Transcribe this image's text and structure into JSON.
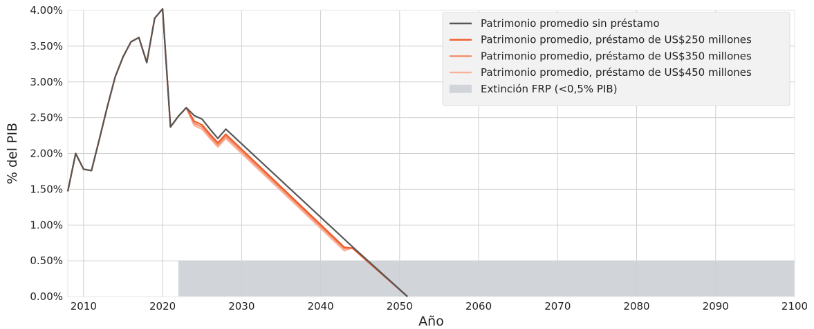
{
  "chart_data": {
    "type": "line",
    "xlabel": "Año",
    "ylabel": "% del PIB",
    "xlim": [
      2008,
      2100
    ],
    "ylim": [
      0,
      4.0
    ],
    "x_ticks": [
      2010,
      2020,
      2030,
      2040,
      2050,
      2060,
      2070,
      2080,
      2090,
      2100
    ],
    "y_ticks": [
      0,
      0.5,
      1.0,
      1.5,
      2.0,
      2.5,
      3.0,
      3.5,
      4.0
    ],
    "y_tick_labels": [
      "0.00%",
      "0.50%",
      "1.00%",
      "1.50%",
      "2.00%",
      "2.50%",
      "3.00%",
      "3.50%",
      "4.00%"
    ],
    "grid": true,
    "legend_position": "top-right",
    "shaded_region": {
      "name": "Extinción FRP (<0,5% PIB)",
      "x_start": 2022,
      "x_end": 2100,
      "y_start": 0,
      "y_end": 0.5,
      "color": "#d1d5d9"
    },
    "series": [
      {
        "name": "Patrimonio promedio sin préstamo",
        "color": "#555555",
        "points": [
          [
            2008,
            1.47
          ],
          [
            2009,
            2.0
          ],
          [
            2010,
            1.78
          ],
          [
            2011,
            1.76
          ],
          [
            2012,
            2.2
          ],
          [
            2013,
            2.65
          ],
          [
            2014,
            3.07
          ],
          [
            2015,
            3.35
          ],
          [
            2016,
            3.56
          ],
          [
            2017,
            3.62
          ],
          [
            2018,
            3.27
          ],
          [
            2019,
            3.89
          ],
          [
            2020,
            4.02
          ],
          [
            2021,
            2.37
          ],
          [
            2022,
            2.52
          ],
          [
            2023,
            2.64
          ],
          [
            2024,
            2.53
          ],
          [
            2025,
            2.48
          ],
          [
            2026,
            2.34
          ],
          [
            2027,
            2.21
          ],
          [
            2028,
            2.34
          ],
          [
            2044,
            0.7
          ],
          [
            2051,
            0.0
          ]
        ]
      },
      {
        "name": "Patrimonio promedio, préstamo de US$250 millones",
        "color": "#f05a28",
        "points": [
          [
            2008,
            1.47
          ],
          [
            2009,
            2.0
          ],
          [
            2010,
            1.78
          ],
          [
            2011,
            1.76
          ],
          [
            2012,
            2.2
          ],
          [
            2013,
            2.65
          ],
          [
            2014,
            3.07
          ],
          [
            2015,
            3.35
          ],
          [
            2016,
            3.56
          ],
          [
            2017,
            3.62
          ],
          [
            2018,
            3.27
          ],
          [
            2019,
            3.89
          ],
          [
            2020,
            4.02
          ],
          [
            2021,
            2.37
          ],
          [
            2022,
            2.52
          ],
          [
            2023,
            2.64
          ],
          [
            2024,
            2.45
          ],
          [
            2025,
            2.4
          ],
          [
            2026,
            2.27
          ],
          [
            2027,
            2.15
          ],
          [
            2028,
            2.27
          ],
          [
            2043,
            0.69
          ],
          [
            2044,
            0.68
          ],
          [
            2051,
            0.0
          ]
        ]
      },
      {
        "name": "Patrimonio promedio, préstamo de US$350 millones",
        "color": "#f58a66",
        "points": [
          [
            2008,
            1.47
          ],
          [
            2009,
            2.0
          ],
          [
            2010,
            1.78
          ],
          [
            2011,
            1.76
          ],
          [
            2012,
            2.2
          ],
          [
            2013,
            2.65
          ],
          [
            2014,
            3.07
          ],
          [
            2015,
            3.35
          ],
          [
            2016,
            3.56
          ],
          [
            2017,
            3.62
          ],
          [
            2018,
            3.27
          ],
          [
            2019,
            3.89
          ],
          [
            2020,
            4.02
          ],
          [
            2021,
            2.37
          ],
          [
            2022,
            2.52
          ],
          [
            2023,
            2.64
          ],
          [
            2024,
            2.42
          ],
          [
            2025,
            2.37
          ],
          [
            2026,
            2.24
          ],
          [
            2027,
            2.12
          ],
          [
            2028,
            2.24
          ],
          [
            2043,
            0.67
          ],
          [
            2044,
            0.68
          ],
          [
            2051,
            0.0
          ]
        ]
      },
      {
        "name": "Patrimonio promedio, préstamo de US$450 millones",
        "color": "#f8b29a",
        "points": [
          [
            2008,
            1.47
          ],
          [
            2009,
            2.0
          ],
          [
            2010,
            1.78
          ],
          [
            2011,
            1.76
          ],
          [
            2012,
            2.2
          ],
          [
            2013,
            2.65
          ],
          [
            2014,
            3.07
          ],
          [
            2015,
            3.35
          ],
          [
            2016,
            3.56
          ],
          [
            2017,
            3.62
          ],
          [
            2018,
            3.27
          ],
          [
            2019,
            3.89
          ],
          [
            2020,
            4.02
          ],
          [
            2021,
            2.37
          ],
          [
            2022,
            2.52
          ],
          [
            2023,
            2.64
          ],
          [
            2024,
            2.39
          ],
          [
            2025,
            2.34
          ],
          [
            2026,
            2.21
          ],
          [
            2027,
            2.09
          ],
          [
            2028,
            2.21
          ],
          [
            2043,
            0.64
          ],
          [
            2044,
            0.68
          ],
          [
            2051,
            0.0
          ]
        ]
      }
    ]
  }
}
